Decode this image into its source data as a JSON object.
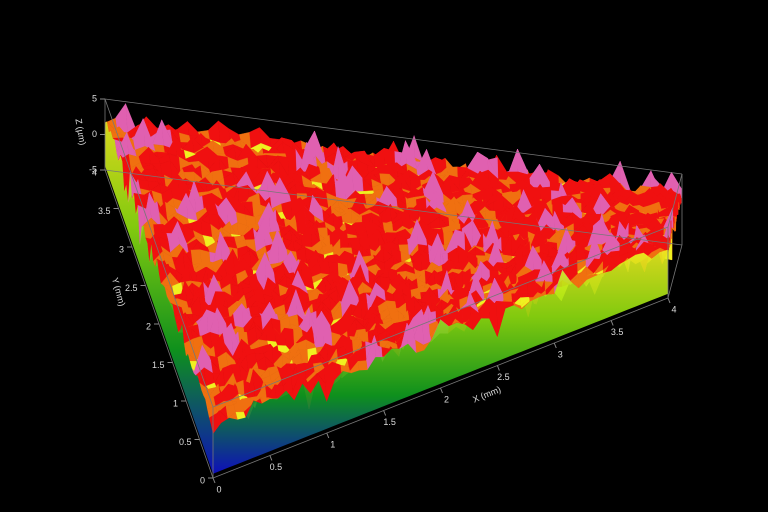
{
  "chart_data": {
    "type": "surface3d",
    "x_label": "X (mm)",
    "y_label": "Y (mm)",
    "z_label": "Z (µm)",
    "xlim": [
      0,
      4
    ],
    "xticks": [
      0,
      0.5,
      1,
      1.5,
      2,
      2.5,
      3,
      3.5,
      4
    ],
    "ylim": [
      0,
      4
    ],
    "yticks": [
      0,
      0.5,
      1,
      1.5,
      2,
      2.5,
      3,
      3.5,
      4
    ],
    "zlim": [
      -5,
      5
    ],
    "zticks": [
      -5,
      0,
      5
    ]
  }
}
